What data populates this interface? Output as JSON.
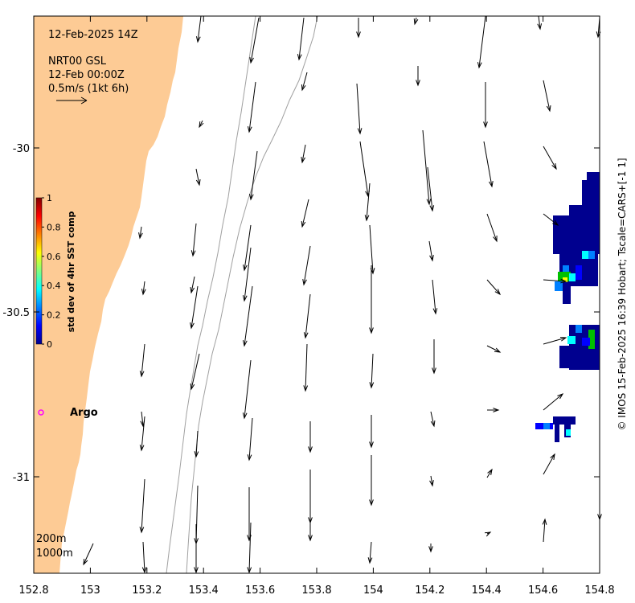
{
  "map": {
    "date_title": "12-Feb-2025 14Z",
    "product": "NRT00 GSL",
    "product_time": "12-Feb 00:00Z",
    "scale_label": "0.5m/s (1kt 6h)",
    "credit": "© IMOS 15-Feb-2025 16:39 Hobart; Tscale=CARS+[-1 1]",
    "isobath_labels": [
      "200m",
      "1000m"
    ],
    "argo_label": "Argo",
    "land_color": "#FDCB95",
    "argo_color": "#FF00FF",
    "x_axis": {
      "min": 152.8,
      "max": 154.8,
      "ticks": [
        "152.8",
        "153",
        "153.2",
        "153.4",
        "153.6",
        "153.8",
        "154",
        "154.2",
        "154.4",
        "154.6",
        "154.8"
      ]
    },
    "y_axis": {
      "min": -31.3,
      "max": -29.6,
      "ticks": [
        "-30",
        "-30.5",
        "-31"
      ]
    }
  },
  "colorbar": {
    "label": "std dev of 4hr SST comp",
    "ticks": [
      "0",
      "0.2",
      "0.4",
      "0.6",
      "0.8",
      "1"
    ],
    "colors": [
      "#00008F",
      "#0000FF",
      "#0080FF",
      "#00FFFF",
      "#80FF80",
      "#FFFF00",
      "#FF8000",
      "#FF0000",
      "#800000"
    ]
  }
}
